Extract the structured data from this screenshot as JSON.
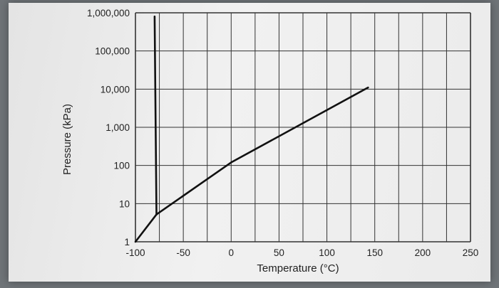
{
  "chart_data": {
    "type": "line",
    "title": "",
    "xlabel": "Temperature (°C)",
    "ylabel": "Pressure (kPa)",
    "xlim": [
      -100,
      250
    ],
    "ylim": [
      1,
      1000000
    ],
    "yscale": "log",
    "grid": true,
    "x_ticks": [
      "-100",
      "-50",
      "0",
      "50",
      "100",
      "150",
      "200",
      "250"
    ],
    "y_ticks": [
      "1",
      "10",
      "100",
      "1,000",
      "10,000",
      "100,000",
      "1,000,000"
    ],
    "series": [
      {
        "x": [
          -100,
          -78
        ],
        "y": [
          1,
          5.2
        ]
      },
      {
        "x": [
          -78,
          0,
          143
        ],
        "y": [
          5.2,
          120,
          11000
        ]
      },
      {
        "x": [
          -78,
          -80
        ],
        "y": [
          5.2,
          800000
        ]
      }
    ]
  }
}
